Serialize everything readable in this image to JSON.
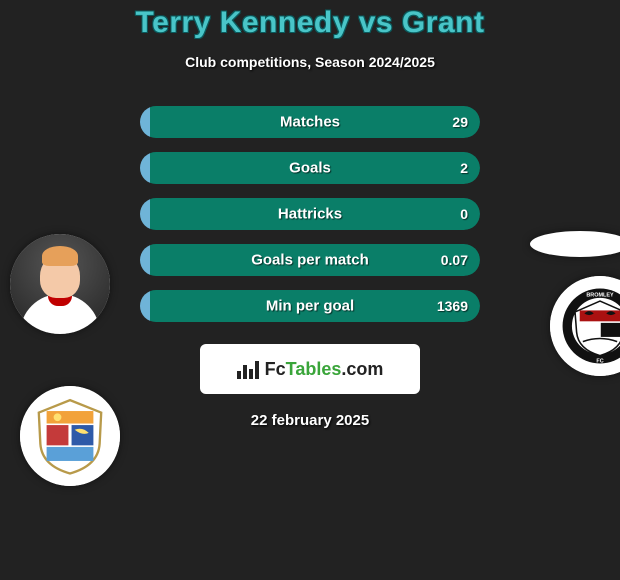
{
  "header": {
    "title": "Terry Kennedy vs Grant",
    "subtitle": "Club competitions, Season 2024/2025",
    "title_color": "#49c5c8",
    "title_outline": "#0a5a5c"
  },
  "bars": {
    "bg_color": "#222222",
    "left_pct": 3,
    "color_left": "#6fb4d8",
    "color_right": "#0a7e68",
    "label_color": "#ffffff",
    "value_color": "#ffffff",
    "rows": [
      {
        "label": "Matches",
        "left": "",
        "right": "29"
      },
      {
        "label": "Goals",
        "left": "",
        "right": "2"
      },
      {
        "label": "Hattricks",
        "left": "",
        "right": "0"
      },
      {
        "label": "Goals per match",
        "left": "",
        "right": "0.07"
      },
      {
        "label": "Min per goal",
        "left": "",
        "right": "1369"
      }
    ]
  },
  "brand": {
    "text_pre": "Fc",
    "text_mid": "Tables",
    "text_post": ".com"
  },
  "date": "22 february 2025",
  "avatars": {
    "player_left_name": "terry-kennedy-photo",
    "player_right_name": "grant-photo",
    "club_left_name": "club-crest-left",
    "club_right_name": "bromley-fc-crest"
  }
}
